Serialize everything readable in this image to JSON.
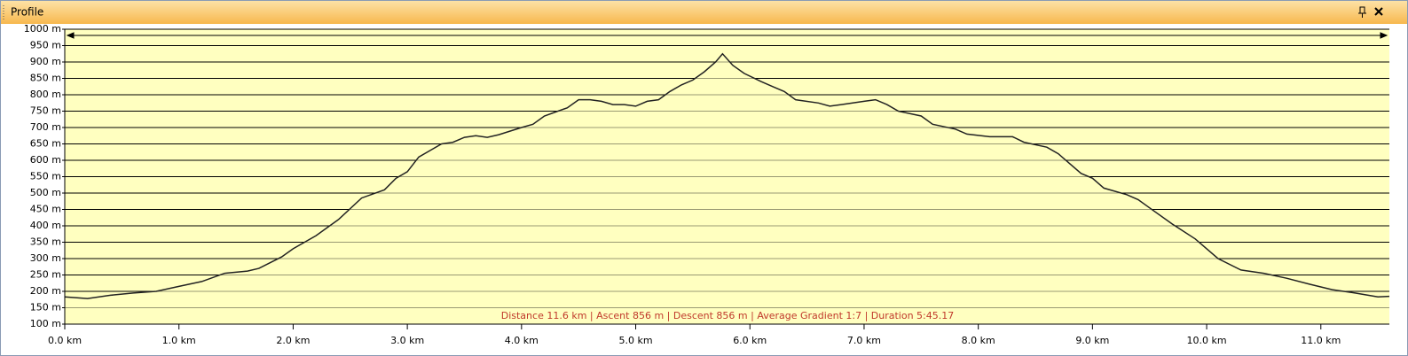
{
  "panel": {
    "title": "Profile"
  },
  "chart_data": {
    "type": "area",
    "annotation": "Distance 11.6 km | Ascent 856 m | Descent 856 m | Average Gradient 1:7 | Duration 5:45.17",
    "x": [
      0.0,
      0.2,
      0.4,
      0.6,
      0.8,
      1.0,
      1.2,
      1.4,
      1.6,
      1.7,
      1.9,
      2.0,
      2.2,
      2.4,
      2.6,
      2.8,
      2.9,
      3.0,
      3.1,
      3.2,
      3.3,
      3.4,
      3.5,
      3.6,
      3.7,
      3.8,
      4.0,
      4.1,
      4.2,
      4.4,
      4.5,
      4.6,
      4.7,
      4.8,
      4.9,
      5.0,
      5.1,
      5.2,
      5.3,
      5.4,
      5.5,
      5.6,
      5.7,
      5.76,
      5.85,
      5.95,
      6.1,
      6.2,
      6.3,
      6.4,
      6.6,
      6.7,
      6.8,
      7.0,
      7.1,
      7.2,
      7.3,
      7.5,
      7.6,
      7.8,
      7.9,
      8.1,
      8.3,
      8.4,
      8.6,
      8.7,
      8.8,
      8.9,
      9.0,
      9.1,
      9.3,
      9.4,
      9.5,
      9.7,
      9.9,
      10.1,
      10.3,
      10.5,
      10.7,
      10.9,
      11.1,
      11.3,
      11.5,
      11.6
    ],
    "values": [
      183,
      178,
      188,
      195,
      200,
      215,
      230,
      255,
      262,
      270,
      305,
      330,
      370,
      420,
      485,
      510,
      545,
      565,
      610,
      630,
      650,
      655,
      670,
      675,
      670,
      678,
      700,
      710,
      735,
      760,
      785,
      785,
      780,
      770,
      770,
      765,
      780,
      785,
      810,
      830,
      845,
      870,
      900,
      925,
      890,
      865,
      840,
      825,
      810,
      785,
      775,
      765,
      770,
      780,
      785,
      770,
      750,
      735,
      710,
      695,
      680,
      672,
      672,
      655,
      640,
      620,
      590,
      560,
      545,
      515,
      495,
      480,
      455,
      405,
      360,
      300,
      265,
      255,
      240,
      222,
      205,
      195,
      183,
      185
    ],
    "color": "#222222",
    "fill": "#ffffc0",
    "xlim": [
      0,
      11.6
    ],
    "ylim": [
      100,
      1000
    ],
    "xticks": [
      {
        "value": 0,
        "label": "0.0 km"
      },
      {
        "value": 1,
        "label": "1.0 km"
      },
      {
        "value": 2,
        "label": "2.0 km"
      },
      {
        "value": 3,
        "label": "3.0 km"
      },
      {
        "value": 4,
        "label": "4.0 km"
      },
      {
        "value": 5,
        "label": "5.0 km"
      },
      {
        "value": 6,
        "label": "6.0 km"
      },
      {
        "value": 7,
        "label": "7.0 km"
      },
      {
        "value": 8,
        "label": "8.0 km"
      },
      {
        "value": 9,
        "label": "9.0 km"
      },
      {
        "value": 10,
        "label": "10.0 km"
      },
      {
        "value": 11,
        "label": "11.0 km"
      }
    ],
    "yticks": [
      {
        "value": 100,
        "label": "100 m"
      },
      {
        "value": 150,
        "label": "150 m"
      },
      {
        "value": 200,
        "label": "200 m"
      },
      {
        "value": 250,
        "label": "250 m"
      },
      {
        "value": 300,
        "label": "300 m"
      },
      {
        "value": 350,
        "label": "350 m"
      },
      {
        "value": 400,
        "label": "400 m"
      },
      {
        "value": 450,
        "label": "450 m"
      },
      {
        "value": 500,
        "label": "500 m"
      },
      {
        "value": 550,
        "label": "550 m"
      },
      {
        "value": 600,
        "label": "600 m"
      },
      {
        "value": 650,
        "label": "650 m"
      },
      {
        "value": 700,
        "label": "700 m"
      },
      {
        "value": 750,
        "label": "750 m"
      },
      {
        "value": 800,
        "label": "800 m"
      },
      {
        "value": 850,
        "label": "850 m"
      },
      {
        "value": 900,
        "label": "900 m"
      },
      {
        "value": 950,
        "label": "950 m"
      },
      {
        "value": 1000,
        "label": "1000 m"
      }
    ],
    "grid": true
  }
}
